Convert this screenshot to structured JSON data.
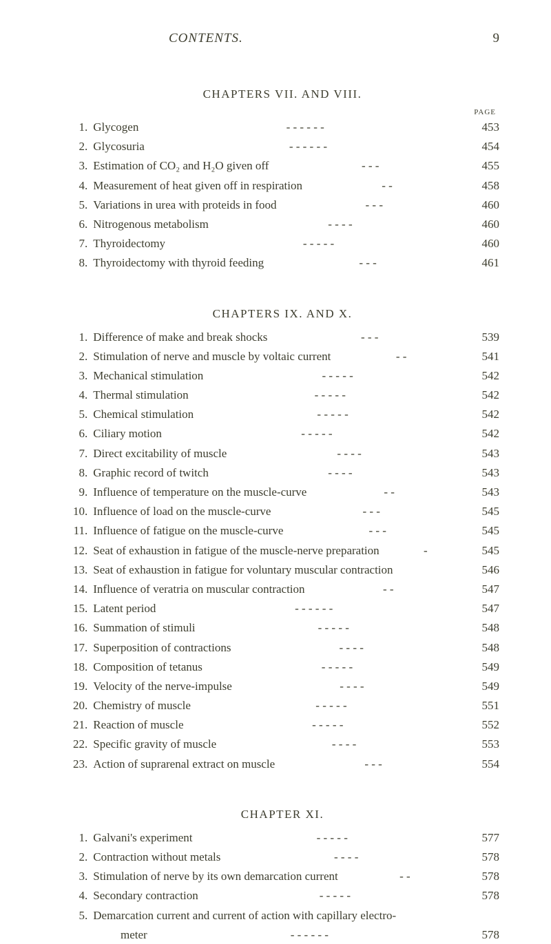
{
  "header": {
    "title": "CONTENTS.",
    "page_number": "9"
  },
  "page_label": "PAGE",
  "sections": [
    {
      "title": "CHAPTERS VII. AND VIII.",
      "show_page_label": true,
      "items": [
        {
          "num": "1",
          "text": "Glycogen",
          "page": "453",
          "dashes": "-      -      -      -      -      -"
        },
        {
          "num": "2",
          "text": "Glycosuria",
          "page": "454",
          "dashes": "-      -      -      -      -      -"
        },
        {
          "num": "3",
          "text": "Estimation of CO₂ and H₂O given off",
          "page": "455",
          "dashes": "-      -      -"
        },
        {
          "num": "4",
          "text": "Measurement of heat given off in respiration",
          "page": "458",
          "dashes": "-      -"
        },
        {
          "num": "5",
          "text": "Variations in urea with proteids in food",
          "page": "460",
          "dashes": "-      -      -"
        },
        {
          "num": "6",
          "text": "Nitrogenous metabolism",
          "page": "460",
          "dashes": "-      -      -      -"
        },
        {
          "num": "7",
          "text": "Thyroidectomy",
          "page": "460",
          "dashes": "-      -      -      -      -"
        },
        {
          "num": "8",
          "text": "Thyroidectomy with thyroid feeding",
          "page": "461",
          "dashes": "-      -      -"
        }
      ]
    },
    {
      "title": "CHAPTERS IX. AND X.",
      "show_page_label": false,
      "items": [
        {
          "num": "1",
          "text": "Difference of make and break shocks",
          "page": "539",
          "dashes": "-      -      -"
        },
        {
          "num": "2",
          "text": "Stimulation of nerve and muscle by voltaic current",
          "page": "541",
          "dashes": "-      -"
        },
        {
          "num": "3",
          "text": "Mechanical stimulation",
          "page": "542",
          "dashes": "-      -      -      -      -"
        },
        {
          "num": "4",
          "text": "Thermal stimulation",
          "page": "542",
          "dashes": "-      -      -      -      -"
        },
        {
          "num": "5",
          "text": "Chemical stimulation",
          "page": "542",
          "dashes": "-      -      -      -      -"
        },
        {
          "num": "6",
          "text": "Ciliary motion",
          "page": "542",
          "dashes": "-      -      -      -      -"
        },
        {
          "num": "7",
          "text": "Direct excitability of muscle",
          "page": "543",
          "dashes": "-      -      -      -"
        },
        {
          "num": "8",
          "text": "Graphic record of twitch",
          "page": "543",
          "dashes": "-      -      -      -"
        },
        {
          "num": "9",
          "text": "Influence of temperature on the muscle-curve",
          "page": "543",
          "dashes": "-      -"
        },
        {
          "num": "10",
          "text": "Influence of load on the muscle-curve",
          "page": "545",
          "dashes": "-      -      -"
        },
        {
          "num": "11",
          "text": "Influence of fatigue on the muscle-curve",
          "page": "545",
          "dashes": "-      -      -"
        },
        {
          "num": "12",
          "text": "Seat of exhaustion in fatigue of the muscle-nerve preparation",
          "page": "545",
          "dashes": "-"
        },
        {
          "num": "13",
          "text": "Seat of exhaustion in fatigue for voluntary muscular contraction",
          "page": "546",
          "dashes": ""
        },
        {
          "num": "14",
          "text": "Influence of veratria on muscular contraction",
          "page": "547",
          "dashes": "-      -"
        },
        {
          "num": "15",
          "text": "Latent period",
          "page": "547",
          "dashes": "-      -      -      -      -      -"
        },
        {
          "num": "16",
          "text": "Summation of stimuli",
          "page": "548",
          "dashes": "-      -      -      -      -"
        },
        {
          "num": "17",
          "text": "Superposition of contractions",
          "page": "548",
          "dashes": "-      -      -      -"
        },
        {
          "num": "18",
          "text": "Composition of tetanus",
          "page": "549",
          "dashes": "-      -      -      -      -"
        },
        {
          "num": "19",
          "text": "Velocity of the nerve-impulse",
          "page": "549",
          "dashes": "-      -      -      -"
        },
        {
          "num": "20",
          "text": "Chemistry of muscle",
          "page": "551",
          "dashes": "-      -      -      -      -"
        },
        {
          "num": "21",
          "text": "Reaction of muscle",
          "page": "552",
          "dashes": "-      -      -      -      -"
        },
        {
          "num": "22",
          "text": "Specific gravity of muscle",
          "page": "553",
          "dashes": "-      -      -      -"
        },
        {
          "num": "23",
          "text": "Action of suprarenal extract on muscle",
          "page": "554",
          "dashes": "-      -      -"
        }
      ]
    },
    {
      "title": "CHAPTER XI.",
      "show_page_label": false,
      "items": [
        {
          "num": "1",
          "text": "Galvani's experiment",
          "page": "577",
          "dashes": "-      -      -      -      -"
        },
        {
          "num": "2",
          "text": "Contraction without metals",
          "page": "578",
          "dashes": "-      -      -      -"
        },
        {
          "num": "3",
          "text": "Stimulation of nerve by its own demarcation current",
          "page": "578",
          "dashes": "-      -"
        },
        {
          "num": "4",
          "text": "Secondary contraction",
          "page": "578",
          "dashes": "-      -      -      -      -"
        },
        {
          "num": "5",
          "text": "Demarcation current and current of action with capillary electro-",
          "page": "",
          "dashes": "",
          "continuation": {
            "text": "meter",
            "page": "578",
            "dashes": "-      -      -      -      -      -"
          }
        }
      ]
    }
  ]
}
